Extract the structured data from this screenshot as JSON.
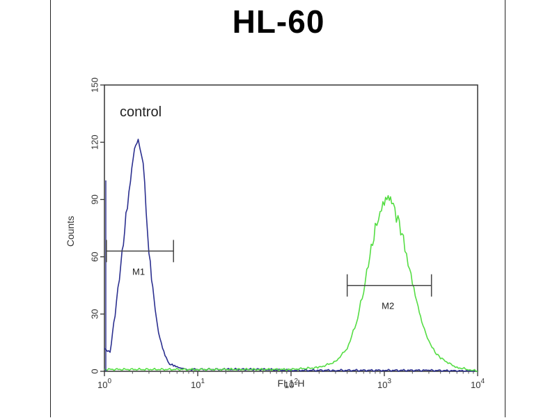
{
  "chart_data": {
    "type": "histogram",
    "title": "HL-60",
    "xlabel": "FL1-H",
    "ylabel": "Counts",
    "x_scale": "log",
    "xlim": [
      1,
      10000
    ],
    "ylim": [
      0,
      150
    ],
    "y_ticks": [
      0,
      30,
      60,
      90,
      120,
      150
    ],
    "x_ticks": [
      {
        "base": "10",
        "exp": "0",
        "value": 1
      },
      {
        "base": "10",
        "exp": "1",
        "value": 10
      },
      {
        "base": "10",
        "exp": "2",
        "value": 100
      },
      {
        "base": "10",
        "exp": "3",
        "value": 1000
      },
      {
        "base": "10",
        "exp": "4",
        "value": 10000
      }
    ],
    "annotation": "control",
    "series": [
      {
        "name": "control",
        "color": "#2b2f8f",
        "x": [
          1,
          1.15,
          1.3,
          1.5,
          1.7,
          1.9,
          2.1,
          2.3,
          2.5,
          2.7,
          2.9,
          3.2,
          3.5,
          3.8,
          4.2,
          4.6,
          5,
          5.5,
          6,
          7,
          8,
          10,
          20,
          50,
          100,
          300,
          1000,
          3000,
          10000
        ],
        "y": [
          12,
          10,
          30,
          55,
          80,
          102,
          118,
          122,
          114,
          95,
          72,
          50,
          32,
          20,
          12,
          7,
          4,
          3,
          2,
          1.5,
          1,
          1,
          1,
          1,
          0.5,
          0.5,
          0.5,
          0.5,
          0
        ]
      },
      {
        "name": "",
        "color": "#55dd44",
        "x": [
          1,
          10,
          100,
          200,
          300,
          400,
          500,
          600,
          700,
          800,
          900,
          1000,
          1100,
          1200,
          1400,
          1600,
          1800,
          2000,
          2300,
          2600,
          3000,
          3500,
          4000,
          5000,
          6000,
          8000,
          10000
        ],
        "y": [
          1,
          1,
          1,
          2,
          5,
          12,
          25,
          42,
          60,
          74,
          85,
          90,
          91,
          88,
          80,
          70,
          58,
          46,
          33,
          24,
          16,
          10,
          7,
          4,
          2,
          1,
          0
        ]
      }
    ],
    "markers": [
      {
        "label": "M1",
        "x_start": 1.05,
        "x_end": 5.5,
        "y": 63
      },
      {
        "label": "M2",
        "x_start": 400,
        "x_end": 3200,
        "y": 45
      }
    ]
  }
}
